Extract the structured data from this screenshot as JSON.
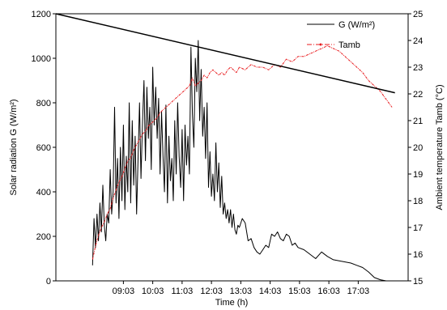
{
  "chart_data": {
    "type": "line",
    "xlabel": "Time (h)",
    "ylabel_left": "Solar radiation G (W/m²)",
    "ylabel_right": "Ambient temperature Tamb (°C)",
    "x_ticks": [
      "09:03",
      "10:03",
      "11:03",
      "12:03",
      "13:03",
      "14:03",
      "15:03",
      "16:03",
      "17:03"
    ],
    "x_tick_hours": [
      9.05,
      10.05,
      11.05,
      12.05,
      13.05,
      14.05,
      15.05,
      16.05,
      17.05
    ],
    "xlim_hours": [
      6.75,
      18.75
    ],
    "ylim_left": [
      0,
      1200
    ],
    "y_ticks_left": [
      "0",
      "200",
      "400",
      "600",
      "800",
      "1000",
      "1200"
    ],
    "ylim_right": [
      15,
      25
    ],
    "y_ticks_right": [
      "15",
      "16",
      "17",
      "18",
      "19",
      "20",
      "21",
      "22",
      "23",
      "24",
      "25"
    ],
    "legend_position": "top-right",
    "series": [
      {
        "name": "G  (W/m²)",
        "axis": "left",
        "color": "#000000",
        "style": "solid",
        "x_hours": [
          8.0,
          8.05,
          8.1,
          8.15,
          8.2,
          8.25,
          8.3,
          8.35,
          8.4,
          8.45,
          8.5,
          8.55,
          8.6,
          8.65,
          8.7,
          8.75,
          8.8,
          8.85,
          8.9,
          8.95,
          9.0,
          9.05,
          9.1,
          9.15,
          9.2,
          9.25,
          9.3,
          9.35,
          9.4,
          9.45,
          9.5,
          9.55,
          9.6,
          9.65,
          9.7,
          9.75,
          9.8,
          9.85,
          9.9,
          9.95,
          10.0,
          10.05,
          10.1,
          10.15,
          10.2,
          10.25,
          10.3,
          10.35,
          10.4,
          10.45,
          10.5,
          10.55,
          10.6,
          10.65,
          10.7,
          10.75,
          10.8,
          10.85,
          10.9,
          10.95,
          11.0,
          11.05,
          11.1,
          11.15,
          11.2,
          11.25,
          11.3,
          11.35,
          11.4,
          11.45,
          11.5,
          11.55,
          11.6,
          11.65,
          11.7,
          11.75,
          11.8,
          11.85,
          11.9,
          11.95,
          12.0,
          12.05,
          12.1,
          12.15,
          12.2,
          12.25,
          12.3,
          12.35,
          12.4,
          12.45,
          12.5,
          12.55,
          12.6,
          12.65,
          12.7,
          12.75,
          12.8,
          12.85,
          12.9,
          12.95,
          13.0,
          13.1,
          13.2,
          13.3,
          13.4,
          13.5,
          13.6,
          13.7,
          13.8,
          13.9,
          14.0,
          14.1,
          14.2,
          14.3,
          14.4,
          14.5,
          14.6,
          14.7,
          14.8,
          14.9,
          15.0,
          15.2,
          15.4,
          15.6,
          15.8,
          16.0,
          16.2,
          16.4,
          16.6,
          16.8,
          17.0,
          17.2,
          17.4,
          17.6,
          17.8,
          18.0,
          18.2,
          18.4
        ],
        "values": [
          70,
          280,
          150,
          300,
          180,
          350,
          220,
          430,
          250,
          180,
          300,
          260,
          500,
          300,
          400,
          780,
          350,
          550,
          280,
          600,
          360,
          700,
          320,
          560,
          400,
          800,
          350,
          720,
          430,
          650,
          300,
          550,
          800,
          460,
          700,
          900,
          540,
          870,
          640,
          780,
          500,
          960,
          700,
          870,
          640,
          820,
          480,
          760,
          560,
          400,
          790,
          350,
          650,
          450,
          550,
          360,
          720,
          480,
          800,
          560,
          420,
          680,
          360,
          700,
          520,
          650,
          480,
          1050,
          750,
          600,
          1000,
          850,
          1080,
          720,
          950,
          650,
          780,
          550,
          800,
          420,
          580,
          380,
          480,
          360,
          620,
          400,
          530,
          330,
          470,
          300,
          350,
          280,
          320,
          260,
          320,
          240,
          300,
          230,
          210,
          250,
          240,
          280,
          260,
          180,
          190,
          150,
          130,
          120,
          140,
          160,
          150,
          210,
          200,
          220,
          190,
          180,
          210,
          200,
          160,
          170,
          150,
          140,
          120,
          100,
          130,
          110,
          95,
          90,
          85,
          80,
          70,
          60,
          40,
          15,
          5,
          0,
          0,
          0
        ]
      },
      {
        "name": "Tamb",
        "axis": "right",
        "color": "#e8191c",
        "style": "dash-dot",
        "x_hours": [
          8.0,
          8.1,
          8.2,
          8.3,
          8.4,
          8.5,
          8.6,
          8.7,
          8.8,
          8.9,
          9.0,
          9.1,
          9.2,
          9.3,
          9.4,
          9.5,
          9.6,
          9.7,
          9.8,
          9.9,
          10.0,
          10.1,
          10.2,
          10.3,
          10.4,
          10.5,
          10.6,
          10.7,
          10.8,
          10.9,
          11.0,
          11.1,
          11.2,
          11.3,
          11.4,
          11.5,
          11.6,
          11.7,
          11.8,
          11.9,
          12.0,
          12.1,
          12.2,
          12.3,
          12.4,
          12.5,
          12.6,
          12.7,
          12.8,
          12.9,
          13.0,
          13.2,
          13.4,
          13.6,
          13.8,
          14.0,
          14.2,
          14.4,
          14.6,
          14.8,
          15.0,
          15.2,
          15.4,
          15.6,
          15.8,
          16.0,
          16.2,
          16.4,
          16.6,
          16.8,
          17.0,
          17.2,
          17.4,
          17.6,
          17.8,
          18.0,
          18.2
        ],
        "values": [
          15.8,
          16.3,
          16.7,
          17.0,
          17.2,
          17.5,
          17.7,
          18.1,
          18.4,
          18.7,
          18.9,
          19.2,
          19.5,
          19.6,
          19.9,
          20.1,
          20.3,
          20.5,
          20.6,
          20.8,
          20.9,
          21.0,
          21.1,
          21.3,
          21.4,
          21.5,
          21.6,
          21.7,
          21.8,
          21.9,
          22.0,
          22.1,
          22.2,
          22.3,
          22.6,
          22.3,
          22.4,
          22.5,
          22.7,
          22.6,
          22.8,
          22.9,
          22.8,
          22.7,
          22.8,
          22.7,
          22.9,
          23.0,
          22.9,
          22.8,
          23.0,
          22.9,
          23.1,
          23.0,
          23.0,
          22.9,
          23.1,
          23.0,
          23.3,
          23.2,
          23.4,
          23.4,
          23.5,
          23.6,
          23.7,
          23.8,
          23.7,
          23.6,
          23.4,
          23.2,
          23.0,
          22.8,
          22.5,
          22.3,
          22.1,
          21.8,
          21.5
        ]
      },
      {
        "name": "",
        "axis": "left",
        "color": "#000000",
        "style": "solid",
        "x_hours": [
          6.75,
          18.3
        ],
        "values": [
          1200,
          845
        ]
      }
    ]
  }
}
